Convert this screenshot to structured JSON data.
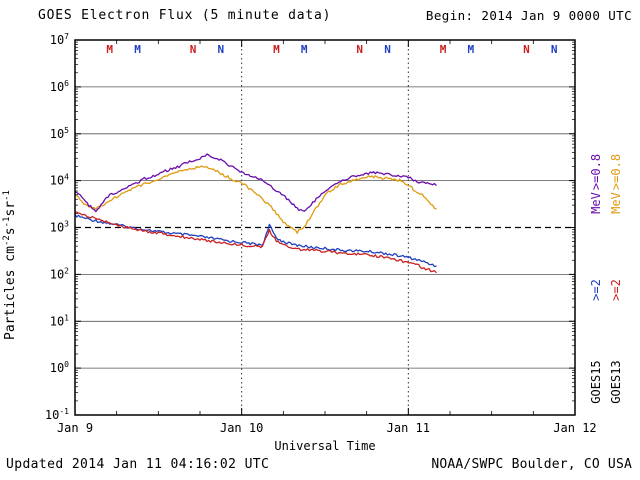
{
  "header": {
    "title": "GOES Electron Flux (5 minute data)",
    "begin_label": "Begin: 2014 Jan 9 0000 UTC"
  },
  "footer": {
    "updated": "Updated 2014 Jan 11 04:16:02 UTC",
    "source": "NOAA/SWPC Boulder, CO USA"
  },
  "right_legend": {
    "goes15": {
      "energy_high": ">=0.8",
      "unit": "MeV",
      "energy_low": ">=2",
      "satellite": "GOES15",
      "color_high": "#6a0dad",
      "color_low": "#2040c0"
    },
    "goes13": {
      "energy_high": ">=0.8",
      "unit": "MeV",
      "energy_low": ">=2",
      "satellite": "GOES13",
      "color_high": "#e09a10",
      "color_low": "#cc2020"
    }
  },
  "chart_data": {
    "type": "line",
    "title": "GOES Electron Flux (5 minute data)",
    "xlabel": "Universal Time",
    "ylabel": "Particles cm^-2 s^-1 sr^-1",
    "ylabel_parts": [
      [
        "t",
        "Particles cm"
      ],
      [
        "sup",
        "-2"
      ],
      [
        "t",
        "s"
      ],
      [
        "sup",
        "-1"
      ],
      [
        "t",
        "sr"
      ],
      [
        "sup",
        "-1"
      ]
    ],
    "x_range_hours": [
      0,
      72
    ],
    "x_ticks": [
      {
        "hour": 0,
        "label": "Jan 9"
      },
      {
        "hour": 24,
        "label": "Jan 10"
      },
      {
        "hour": 48,
        "label": "Jan 11"
      },
      {
        "hour": 72,
        "label": "Jan 12"
      }
    ],
    "y_log_range": [
      -1,
      7
    ],
    "y_tick_exponents": [
      7,
      6,
      5,
      4,
      3,
      2,
      1,
      0,
      -1
    ],
    "grid": "solid horizontal line at each decade, dashed alert line at 1e3, dotted vertical lines at day boundaries",
    "legend_position": "right-rotated",
    "threshold_flux": 1000,
    "day_boundary_lines_hours": [
      24,
      48
    ],
    "noon_midnight_markers": [
      {
        "hour": 5,
        "letter": "M",
        "satellite": "GOES13",
        "color": "#cc2020"
      },
      {
        "hour": 9,
        "letter": "M",
        "satellite": "GOES15",
        "color": "#2040c0"
      },
      {
        "hour": 17,
        "letter": "N",
        "satellite": "GOES13",
        "color": "#cc2020"
      },
      {
        "hour": 21,
        "letter": "N",
        "satellite": "GOES15",
        "color": "#2040c0"
      },
      {
        "hour": 29,
        "letter": "M",
        "satellite": "GOES13",
        "color": "#cc2020"
      },
      {
        "hour": 33,
        "letter": "M",
        "satellite": "GOES15",
        "color": "#2040c0"
      },
      {
        "hour": 41,
        "letter": "N",
        "satellite": "GOES13",
        "color": "#cc2020"
      },
      {
        "hour": 45,
        "letter": "N",
        "satellite": "GOES15",
        "color": "#2040c0"
      },
      {
        "hour": 53,
        "letter": "M",
        "satellite": "GOES13",
        "color": "#cc2020"
      },
      {
        "hour": 57,
        "letter": "M",
        "satellite": "GOES15",
        "color": "#2040c0"
      },
      {
        "hour": 65,
        "letter": "N",
        "satellite": "GOES13",
        "color": "#cc2020"
      },
      {
        "hour": 69,
        "letter": "N",
        "satellite": "GOES15",
        "color": "#2040c0"
      }
    ],
    "series": [
      {
        "name": "GOES15 >=2 MeV",
        "satellite": "GOES15",
        "energy": ">=2 MeV",
        "color": "#2040c0",
        "hours_start": 0,
        "hours_step": 1,
        "flux": [
          1800,
          1650,
          1500,
          1400,
          1300,
          1220,
          1150,
          1070,
          1000,
          950,
          900,
          860,
          820,
          780,
          750,
          720,
          700,
          670,
          640,
          610,
          580,
          550,
          520,
          500,
          480,
          460,
          440,
          430,
          1100,
          600,
          500,
          450,
          420,
          400,
          380,
          370,
          360,
          345,
          330,
          325,
          320,
          315,
          310,
          300,
          290,
          275,
          260,
          245,
          230,
          210,
          190,
          170,
          150
        ]
      },
      {
        "name": "GOES13 >=2 MeV",
        "satellite": "GOES13",
        "energy": ">=2 MeV",
        "color": "#cc2020",
        "hours_start": 0,
        "hours_step": 1,
        "flux": [
          2100,
          1900,
          1700,
          1550,
          1400,
          1270,
          1150,
          1040,
          950,
          890,
          850,
          800,
          760,
          720,
          680,
          650,
          620,
          590,
          560,
          530,
          500,
          480,
          460,
          440,
          430,
          410,
          400,
          390,
          850,
          520,
          420,
          380,
          350,
          340,
          330,
          320,
          310,
          300,
          290,
          285,
          280,
          270,
          260,
          250,
          240,
          225,
          210,
          195,
          180,
          165,
          140,
          125,
          110
        ]
      },
      {
        "name": "GOES13 >=0.8 MeV",
        "satellite": "GOES13",
        "energy": ">=0.8 MeV",
        "color": "#e09a10",
        "hours_start": 0,
        "hours_step": 1,
        "flux": [
          5000,
          3500,
          2800,
          2500,
          3000,
          3800,
          4500,
          5500,
          6500,
          7500,
          8500,
          9500,
          10500,
          12000,
          14000,
          16000,
          17000,
          18000,
          20000,
          19000,
          17000,
          14000,
          12000,
          10000,
          9000,
          7000,
          5500,
          4000,
          3000,
          2000,
          1300,
          1000,
          800,
          1000,
          1800,
          3000,
          5000,
          6500,
          8000,
          9000,
          10000,
          11000,
          12000,
          12000,
          11500,
          11000,
          10500,
          10000,
          8000,
          6000,
          5000,
          3500,
          2500
        ]
      },
      {
        "name": "GOES15 >=0.8 MeV",
        "satellite": "GOES15",
        "energy": ">=0.8 MeV",
        "color": "#6a0dad",
        "hours_start": 0,
        "hours_step": 1,
        "flux": [
          6000,
          4500,
          3000,
          2200,
          3500,
          5000,
          5500,
          7000,
          8000,
          9000,
          11000,
          12000,
          14000,
          16000,
          18000,
          20000,
          24000,
          26000,
          30000,
          35000,
          32000,
          28000,
          22000,
          18000,
          15000,
          13000,
          12000,
          10000,
          8000,
          6000,
          5000,
          3500,
          2500,
          2200,
          3000,
          4500,
          6000,
          8000,
          9500,
          11000,
          12000,
          13000,
          14000,
          15000,
          14000,
          13500,
          13000,
          12500,
          12000,
          10000,
          9000,
          8500,
          8000
        ]
      }
    ]
  }
}
